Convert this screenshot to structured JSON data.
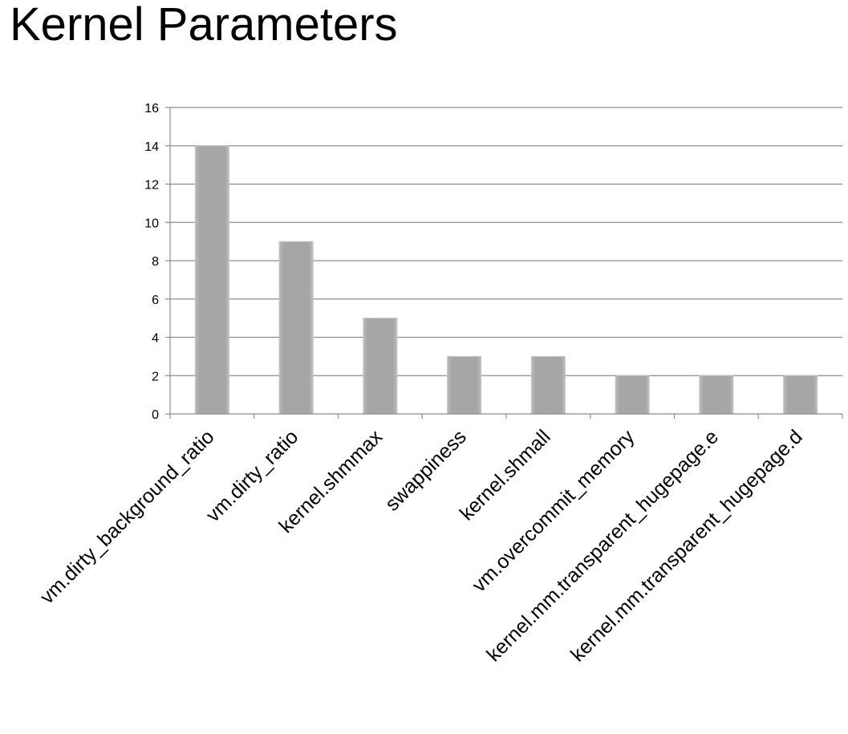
{
  "chart_data": {
    "type": "bar",
    "title": "Kernel Parameters",
    "xlabel": "",
    "ylabel": "",
    "categories": [
      "vm.dirty_background_ratio",
      "vm.dirty_ratio",
      "kernel.shmmax",
      "swappiness",
      "kernel.shmall",
      "vm.overcommit_memory",
      "kernel.mm.transparent_hugepage.e",
      "kernel.mm.transparent_hugepage.d"
    ],
    "values": [
      14,
      9,
      5,
      3,
      3,
      2,
      2,
      2
    ],
    "ylim": [
      0,
      16
    ],
    "yticks": [
      0,
      2,
      4,
      6,
      8,
      10,
      12,
      14,
      16
    ],
    "grid": true,
    "legend": "none",
    "colors": {
      "bar": "#a6a6a6",
      "bar_edge": "#c4c4c4",
      "grid": "#8c8c8c",
      "axis": "#8c8c8c"
    }
  }
}
